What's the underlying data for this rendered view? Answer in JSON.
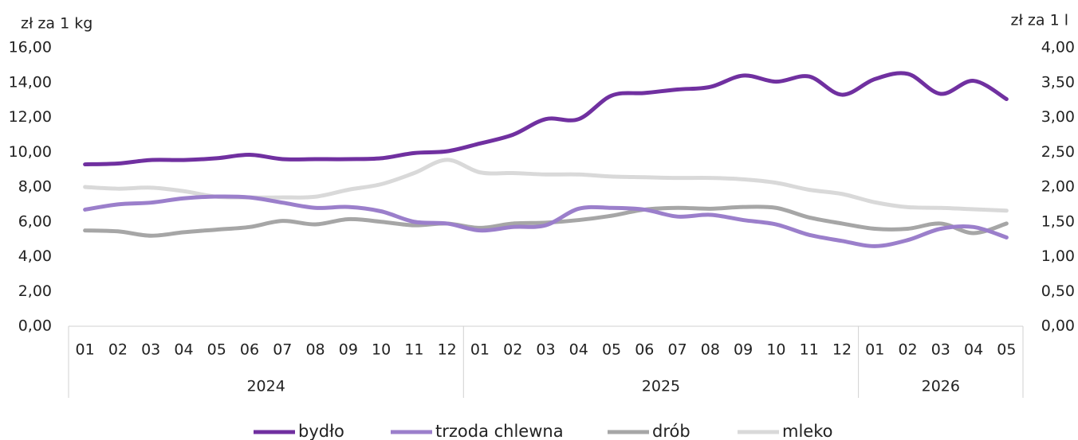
{
  "chart_data": {
    "type": "line",
    "y_label": "zł za 1 kg",
    "y2_label": "zł za 1 l",
    "groups": [
      {
        "label": "2024",
        "categories": [
          "01",
          "02",
          "03",
          "04",
          "05",
          "06",
          "07",
          "08",
          "09",
          "10",
          "11",
          "12"
        ]
      },
      {
        "label": "2025",
        "categories": [
          "01",
          "02",
          "03",
          "04",
          "05",
          "06",
          "07",
          "08",
          "09",
          "10",
          "11",
          "12"
        ]
      },
      {
        "label": "2026",
        "categories": [
          "01",
          "02",
          "03",
          "04",
          "05"
        ]
      }
    ],
    "series": [
      {
        "name": "bydło",
        "color": "#7030a0",
        "values": [
          9.3,
          9.35,
          9.55,
          9.55,
          9.65,
          9.85,
          9.6,
          9.6,
          9.6,
          9.65,
          9.95,
          10.05,
          10.5,
          11.0,
          11.9,
          11.9,
          13.25,
          13.4,
          13.6,
          13.75,
          14.4,
          14.05,
          14.35,
          13.3,
          14.2,
          14.5,
          13.35,
          14.1,
          13.05
        ]
      },
      {
        "name": "trzoda chlewna",
        "color": "#9b7fcb",
        "values": [
          6.7,
          7.0,
          7.1,
          7.35,
          7.45,
          7.4,
          7.1,
          6.8,
          6.85,
          6.6,
          6.0,
          5.9,
          5.5,
          5.7,
          5.8,
          6.75,
          6.8,
          6.7,
          6.3,
          6.4,
          6.1,
          5.85,
          5.25,
          4.9,
          4.6,
          4.95,
          5.6,
          5.7,
          5.1
        ]
      },
      {
        "name": "drób",
        "color": "#a6a6a6",
        "values": [
          5.5,
          5.45,
          5.2,
          5.4,
          5.55,
          5.7,
          6.05,
          5.85,
          6.15,
          6.0,
          5.8,
          5.9,
          5.65,
          5.9,
          5.95,
          6.1,
          6.35,
          6.7,
          6.8,
          6.75,
          6.85,
          6.8,
          6.25,
          5.9,
          5.6,
          5.6,
          5.9,
          5.35,
          5.9
        ]
      },
      {
        "name": "mleko",
        "color": "#d9d9d9",
        "axis": "y2",
        "values": [
          2.0,
          1.975,
          1.99,
          1.94,
          1.86,
          1.85,
          1.85,
          1.86,
          1.96,
          2.04,
          2.2,
          2.39,
          2.21,
          2.2,
          2.18,
          2.18,
          2.15,
          2.14,
          2.13,
          2.13,
          2.11,
          2.06,
          1.96,
          1.9,
          1.78,
          1.71,
          1.7,
          1.68,
          1.66
        ]
      }
    ],
    "ylim": [
      0,
      16
    ],
    "yticks": [
      {
        "value": 0,
        "label": "0,00"
      },
      {
        "value": 2,
        "label": "2,00"
      },
      {
        "value": 4,
        "label": "4,00"
      },
      {
        "value": 6,
        "label": "6,00"
      },
      {
        "value": 8,
        "label": "8,00"
      },
      {
        "value": 10,
        "label": "10,00"
      },
      {
        "value": 12,
        "label": "12,00"
      },
      {
        "value": 14,
        "label": "14,00"
      },
      {
        "value": 16,
        "label": "16,00"
      }
    ],
    "y2lim": [
      0,
      4
    ],
    "y2ticks": [
      {
        "value": 0,
        "label": "0,00"
      },
      {
        "value": 0.5,
        "label": "0,50"
      },
      {
        "value": 1,
        "label": "1,00"
      },
      {
        "value": 1.5,
        "label": "1,50"
      },
      {
        "value": 2,
        "label": "2,00"
      },
      {
        "value": 2.5,
        "label": "2,50"
      },
      {
        "value": 3,
        "label": "3,00"
      },
      {
        "value": 3.5,
        "label": "3,50"
      },
      {
        "value": 4,
        "label": "4,00"
      }
    ],
    "grid": false,
    "legend": "bottom"
  }
}
